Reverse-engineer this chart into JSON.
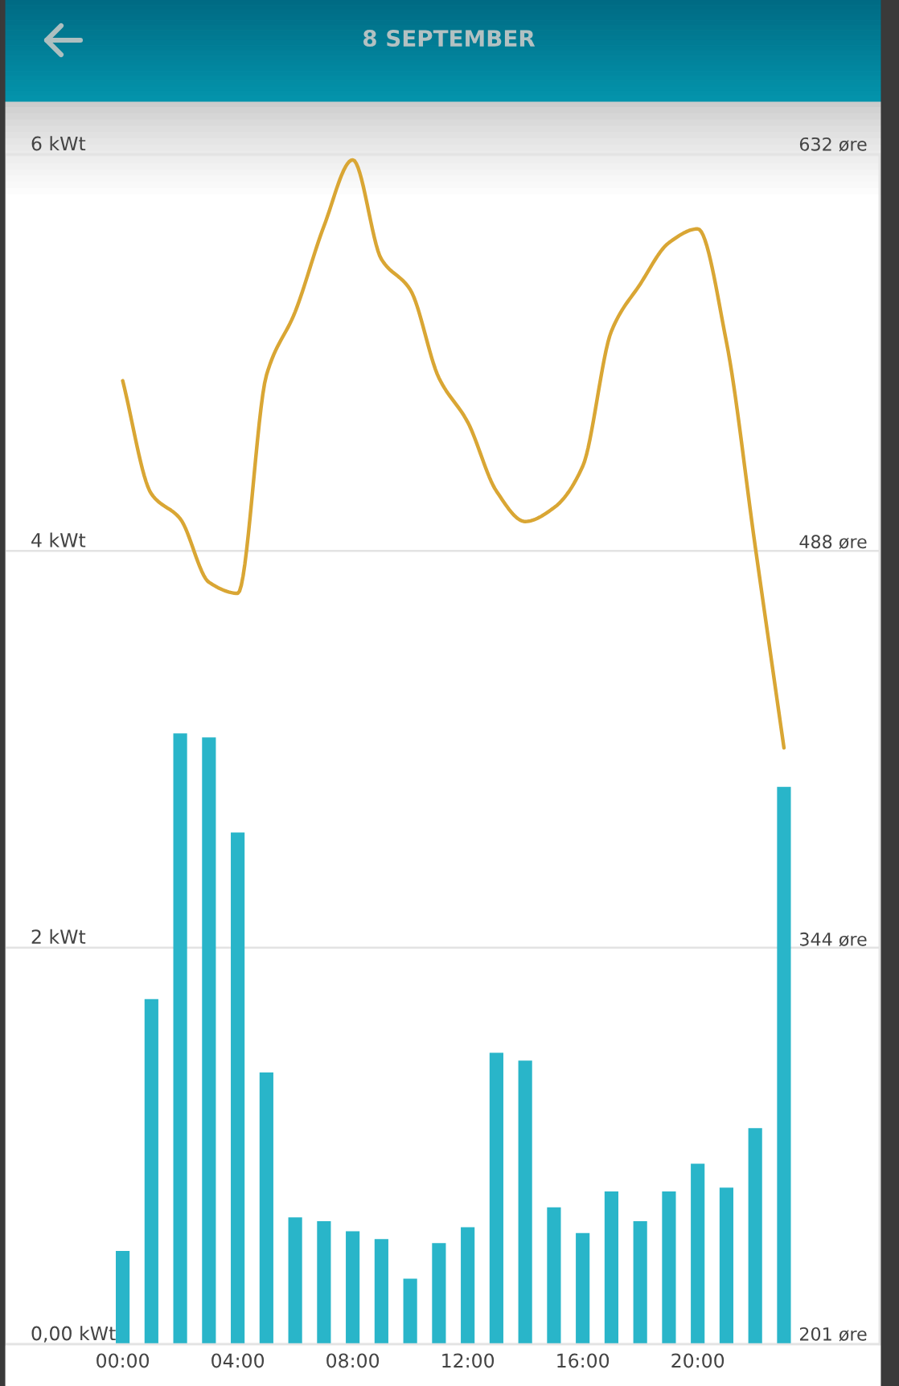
{
  "chart_data": {
    "type": "bar",
    "title": "8 SEPTEMBER",
    "categories": [
      "00:00",
      null,
      null,
      null,
      "04:00",
      null,
      null,
      null,
      "08:00",
      null,
      null,
      null,
      "12:00",
      null,
      null,
      null,
      "16:00",
      null,
      null,
      null,
      "20:00",
      null,
      null,
      null
    ],
    "series": [
      {
        "color": "#29b5c9",
        "values": [
          0.47,
          1.74,
          3.08,
          3.06,
          2.58,
          1.37,
          0.64,
          0.62,
          0.57,
          0.53,
          0.33,
          0.51,
          0.59,
          1.47,
          1.43,
          0.69,
          0.56,
          0.77,
          0.62,
          0.77,
          0.91,
          0.79,
          1.09,
          2.81
        ]
      },
      {
        "type": "line",
        "axis": "y2",
        "color": "#d9a634",
        "values": [
          550,
          509,
          500,
          477,
          473,
          552,
          575,
          606,
          630,
          594,
          583,
          551,
          535,
          510,
          499,
          504,
          519,
          568,
          585,
          600,
          605,
          564,
          490,
          417
        ]
      }
    ],
    "ylim": [
      0,
      6
    ],
    "yticks": [
      {
        "value": 0,
        "label": "0,00 kWt"
      },
      {
        "value": 2,
        "label": "2 kWt"
      },
      {
        "value": 4,
        "label": "4 kWt"
      },
      {
        "value": 6,
        "label": "6 kWt"
      }
    ],
    "y2lim": [
      201,
      632
    ],
    "y2ticks": [
      {
        "value": 201,
        "label": "201 øre"
      },
      {
        "value": 344,
        "label": "344 øre"
      },
      {
        "value": 488,
        "label": "488 øre"
      },
      {
        "value": 632,
        "label": "632 øre"
      }
    ],
    "grid": "y"
  }
}
